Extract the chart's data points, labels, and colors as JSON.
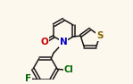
{
  "bg_color": "#fdf8ee",
  "bond_color": "#1a1a1a",
  "atom_colors": {
    "O": "#cc0000",
    "N": "#0000cc",
    "S": "#886600",
    "F": "#006600",
    "Cl": "#006600"
  }
}
